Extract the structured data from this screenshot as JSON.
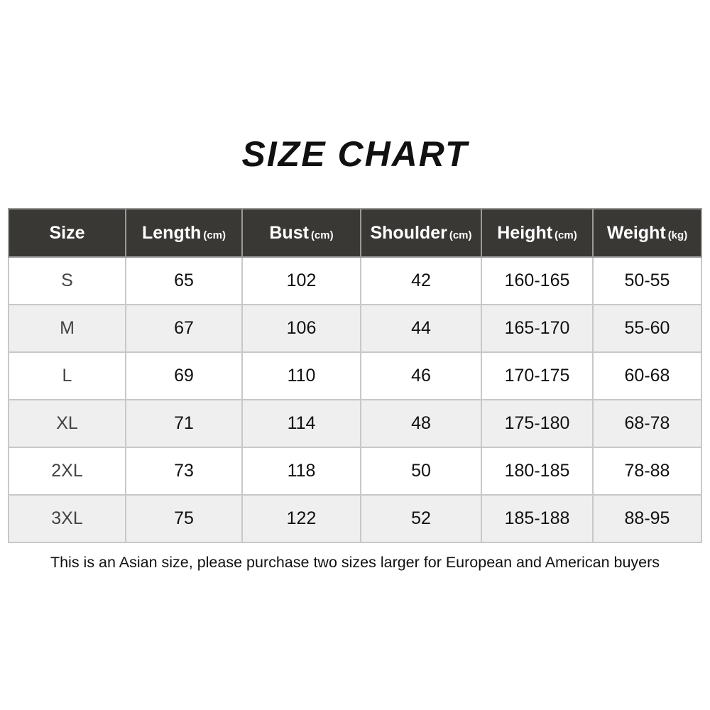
{
  "title": "SIZE CHART",
  "columns": [
    {
      "label": "Size",
      "unit": ""
    },
    {
      "label": "Length",
      "unit": "(cm)"
    },
    {
      "label": "Bust",
      "unit": "(cm)"
    },
    {
      "label": "Shoulder",
      "unit": "(cm)"
    },
    {
      "label": "Height",
      "unit": "(cm)"
    },
    {
      "label": "Weight",
      "unit": "(kg)"
    }
  ],
  "rows": [
    [
      "S",
      "65",
      "102",
      "42",
      "160-165",
      "50-55"
    ],
    [
      "M",
      "67",
      "106",
      "44",
      "165-170",
      "55-60"
    ],
    [
      "L",
      "69",
      "110",
      "46",
      "170-175",
      "60-68"
    ],
    [
      "XL",
      "71",
      "114",
      "48",
      "175-180",
      "68-78"
    ],
    [
      "2XL",
      "73",
      "118",
      "50",
      "180-185",
      "78-88"
    ],
    [
      "3XL",
      "75",
      "122",
      "52",
      "185-188",
      "88-95"
    ]
  ],
  "note": "This is an Asian size, please purchase two sizes larger for European and American buyers",
  "colors": {
    "header_bg": "#3a3835",
    "alt_row": "#efefef"
  }
}
